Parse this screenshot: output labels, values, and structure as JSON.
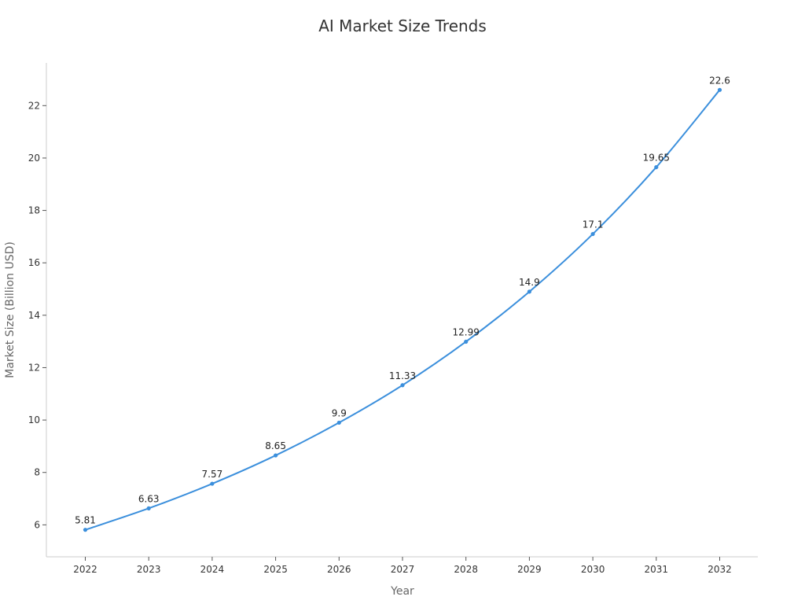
{
  "chart_data": {
    "type": "line",
    "title": "AI Market Size Trends",
    "xlabel": "Year",
    "ylabel": "Market Size (Billion USD)",
    "categories": [
      "2022",
      "2023",
      "2024",
      "2025",
      "2026",
      "2027",
      "2028",
      "2029",
      "2030",
      "2031",
      "2032"
    ],
    "series": [
      {
        "values": [
          5.81,
          6.63,
          7.57,
          8.65,
          9.9,
          11.33,
          12.99,
          14.9,
          17.1,
          19.65,
          22.6
        ],
        "color": "#3b8fdc"
      }
    ],
    "data_labels": [
      "5.81",
      "6.63",
      "7.57",
      "8.65",
      "9.9",
      "11.33",
      "12.99",
      "14.9",
      "17.1",
      "19.65",
      "22.6"
    ],
    "ylim": [
      4.78,
      23.63
    ],
    "yticks": [
      6,
      8,
      10,
      12,
      14,
      16,
      18,
      20,
      22
    ],
    "grid": false,
    "legend": "none",
    "curve": "smooth"
  }
}
